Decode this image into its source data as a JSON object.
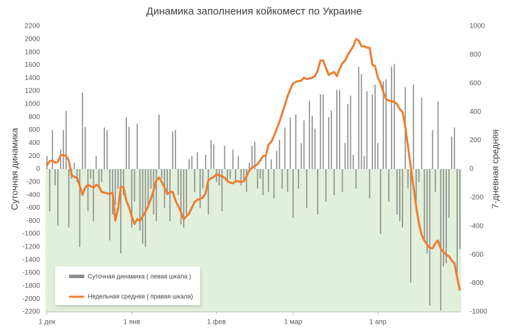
{
  "chart_data": {
    "type": "bar-line",
    "title": "Динамика заполнения койкомест по Украине",
    "y_label": "Суточная динамика",
    "y2_label": "7-дневная средняя",
    "categories": [
      "1 дек",
      null,
      null,
      null,
      null,
      null,
      null,
      null,
      null,
      null,
      null,
      null,
      null,
      null,
      null,
      null,
      null,
      null,
      null,
      null,
      null,
      null,
      null,
      null,
      null,
      null,
      null,
      null,
      null,
      null,
      null,
      "1 янв",
      null,
      null,
      null,
      null,
      null,
      null,
      null,
      null,
      null,
      null,
      null,
      null,
      null,
      null,
      null,
      null,
      null,
      null,
      null,
      null,
      null,
      null,
      null,
      null,
      null,
      null,
      null,
      null,
      null,
      null,
      "1 фев",
      null,
      null,
      null,
      null,
      null,
      null,
      null,
      null,
      null,
      null,
      null,
      null,
      null,
      null,
      null,
      null,
      null,
      null,
      null,
      null,
      null,
      null,
      null,
      null,
      null,
      null,
      null,
      "1 мар",
      null,
      null,
      null,
      null,
      null,
      null,
      null,
      null,
      null,
      null,
      null,
      null,
      null,
      null,
      null,
      null,
      null,
      null,
      null,
      null,
      null,
      null,
      null,
      null,
      null,
      null,
      null,
      null,
      null,
      null,
      "1 апр",
      null,
      null,
      null,
      null,
      null,
      null,
      null,
      null,
      null,
      null,
      null,
      null,
      null,
      null,
      null,
      null,
      null,
      null,
      null,
      null,
      null,
      null,
      null,
      null,
      null,
      null,
      null,
      null,
      null,
      null
    ],
    "series": [
      {
        "name": "Суточная динамика ( левая шкала )",
        "type": "bar",
        "color": "#8c8c8c",
        "values": [
          200,
          -650,
          600,
          -250,
          -870,
          300,
          600,
          900,
          -900,
          -150,
          100,
          -200,
          -1200,
          1180,
          650,
          -650,
          -150,
          -800,
          200,
          -300,
          -200,
          640,
          600,
          -1100,
          -700,
          -550,
          -300,
          -1300,
          -400,
          800,
          650,
          -900,
          -500,
          700,
          -950,
          -1150,
          -1200,
          -600,
          -300,
          -700,
          -800,
          840,
          -150,
          -600,
          -400,
          -800,
          580,
          600,
          -400,
          -850,
          -900,
          -700,
          150,
          200,
          -350,
          260,
          -600,
          -300,
          220,
          -700,
          450,
          380,
          -200,
          -250,
          -650,
          360,
          -200,
          -150,
          300,
          -180,
          200,
          -250,
          -200,
          -350,
          100,
          360,
          420,
          -300,
          -150,
          -400,
          220,
          -350,
          150,
          -450,
          280,
          450,
          -300,
          640,
          -350,
          800,
          -750,
          840,
          -300,
          400,
          750,
          -600,
          1050,
          820,
          620,
          -700,
          1150,
          1150,
          -500,
          800,
          900,
          -400,
          1220,
          1220,
          -350,
          400,
          1000,
          1130,
          220,
          -300,
          1580,
          1460,
          200,
          1200,
          -450,
          1150,
          1300,
          400,
          -1000,
          1350,
          1380,
          -500,
          1580,
          1620,
          -700,
          -800,
          -900,
          1260,
          -300,
          -1750,
          1300,
          -650,
          -200,
          1100,
          -1100,
          -1300,
          -2100,
          600,
          -350,
          1040,
          -2180,
          -1500,
          -1450,
          -750,
          500,
          640,
          -1600,
          -1230
        ]
      },
      {
        "name": "Недельная средняя ( правая шкала)",
        "type": "line",
        "axis": "y2",
        "color": "#ed7d31",
        "values": [
          25,
          55,
          60,
          45,
          50,
          95,
          100,
          90,
          60,
          -40,
          -55,
          -60,
          -120,
          -180,
          -130,
          -110,
          -120,
          -130,
          -110,
          -120,
          -160,
          -165,
          -170,
          -175,
          -165,
          -360,
          -280,
          -125,
          -125,
          -220,
          -265,
          -330,
          -385,
          -350,
          -365,
          -330,
          -300,
          -260,
          -210,
          -150,
          -80,
          -60,
          -90,
          -130,
          -175,
          -160,
          -160,
          -220,
          -260,
          -300,
          -350,
          -330,
          -310,
          -270,
          -230,
          -215,
          -210,
          -200,
          -170,
          -80,
          -65,
          -55,
          -35,
          -45,
          -50,
          -60,
          -85,
          -95,
          -100,
          -85,
          -85,
          -90,
          -85,
          -50,
          -10,
          10,
          20,
          35,
          60,
          90,
          95,
          170,
          190,
          230,
          280,
          330,
          390,
          450,
          510,
          560,
          600,
          610,
          615,
          620,
          640,
          630,
          635,
          640,
          650,
          690,
          760,
          760,
          710,
          660,
          670,
          680,
          650,
          700,
          740,
          760,
          800,
          830,
          860,
          910,
          900,
          860,
          860,
          850,
          850,
          730,
          720,
          640,
          600,
          540,
          490,
          480,
          475,
          470,
          455,
          420,
          400,
          300,
          160,
          20,
          -120,
          -260,
          -380,
          -460,
          -500,
          -530,
          -550,
          -555,
          -520,
          -500,
          -560,
          -580,
          -600,
          -610,
          -640,
          -660,
          -760,
          -850
        ]
      }
    ],
    "ylim": [
      -2200,
      2200
    ],
    "yticks": [
      -2200,
      -2000,
      -1800,
      -1600,
      -1400,
      -1200,
      -1000,
      -800,
      -600,
      -400,
      -200,
      0,
      200,
      400,
      600,
      800,
      1000,
      1200,
      1400,
      1600,
      1800,
      2000,
      2200
    ],
    "y2lim": [
      -1000,
      1000
    ],
    "y2ticks": [
      -1000,
      -800,
      -600,
      -400,
      -200,
      0,
      200,
      400,
      600,
      800,
      1000
    ],
    "legend": "lower-left"
  }
}
